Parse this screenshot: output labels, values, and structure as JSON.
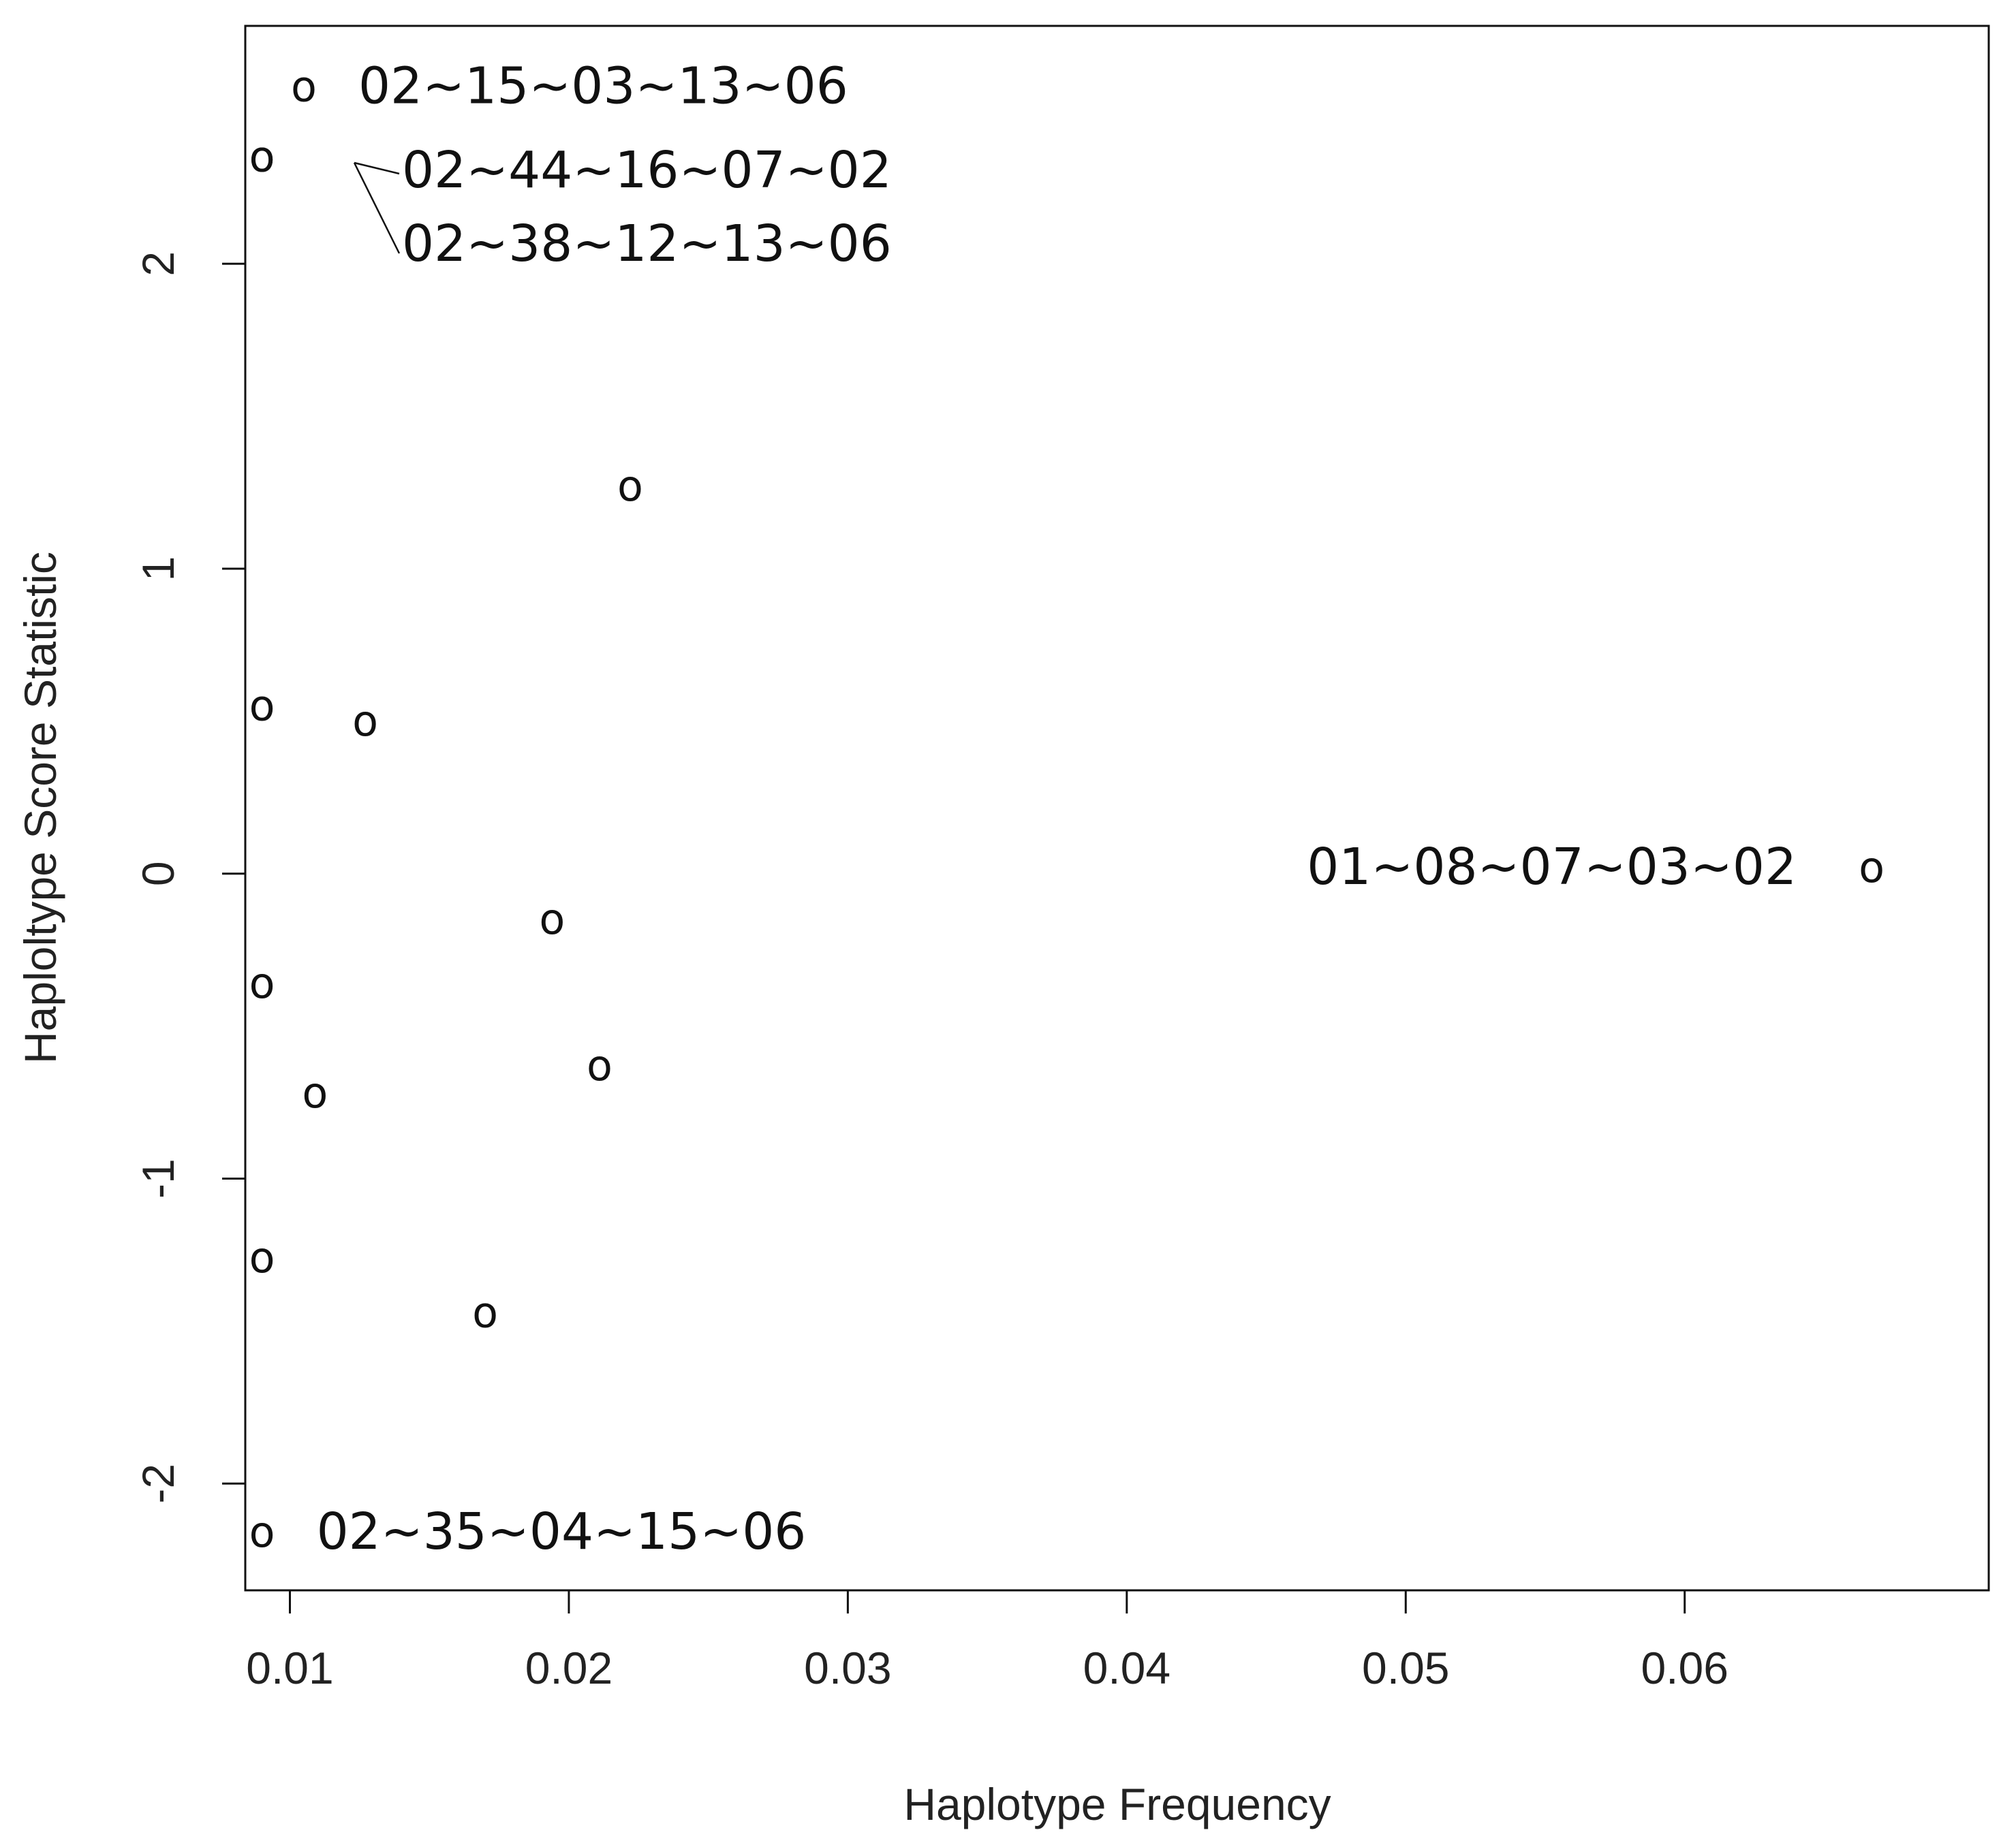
{
  "chart_data": {
    "type": "scatter",
    "title": "",
    "xlabel": "Haplotype Frequency",
    "ylabel": "Haploltype Score Statistic",
    "xlim": [
      0.0084,
      0.0709
    ],
    "ylim": [
      -2.35,
      2.78
    ],
    "xticks": [
      0.01,
      0.02,
      0.03,
      0.04,
      0.05,
      0.06
    ],
    "xtick_labels": [
      "0.01",
      "0.02",
      "0.03",
      "0.04",
      "0.05",
      "0.06"
    ],
    "yticks": [
      -2,
      -1,
      0,
      1,
      2
    ],
    "ytick_labels": [
      "-2",
      "-1",
      "0",
      "1",
      "2"
    ],
    "marker": "o",
    "grid": false,
    "points": [
      {
        "x": 0.0105,
        "y": 2.58,
        "label": "02~15~03~13~06"
      },
      {
        "x": 0.009,
        "y": 2.35,
        "label": "02~44~16~07~02"
      },
      {
        "x": 0.009,
        "y": 2.35,
        "label": "02~38~12~13~06"
      },
      {
        "x": 0.0222,
        "y": 1.27,
        "label": ""
      },
      {
        "x": 0.009,
        "y": 0.55,
        "label": ""
      },
      {
        "x": 0.0127,
        "y": 0.5,
        "label": ""
      },
      {
        "x": 0.0667,
        "y": 0.02,
        "label": "01~08~07~03~02"
      },
      {
        "x": 0.0194,
        "y": -0.15,
        "label": ""
      },
      {
        "x": 0.009,
        "y": -0.36,
        "label": ""
      },
      {
        "x": 0.0211,
        "y": -0.63,
        "label": ""
      },
      {
        "x": 0.0109,
        "y": -0.72,
        "label": ""
      },
      {
        "x": 0.009,
        "y": -1.26,
        "label": ""
      },
      {
        "x": 0.017,
        "y": -1.44,
        "label": ""
      },
      {
        "x": 0.009,
        "y": -2.16,
        "label": "02~35~04~15~06"
      }
    ]
  }
}
